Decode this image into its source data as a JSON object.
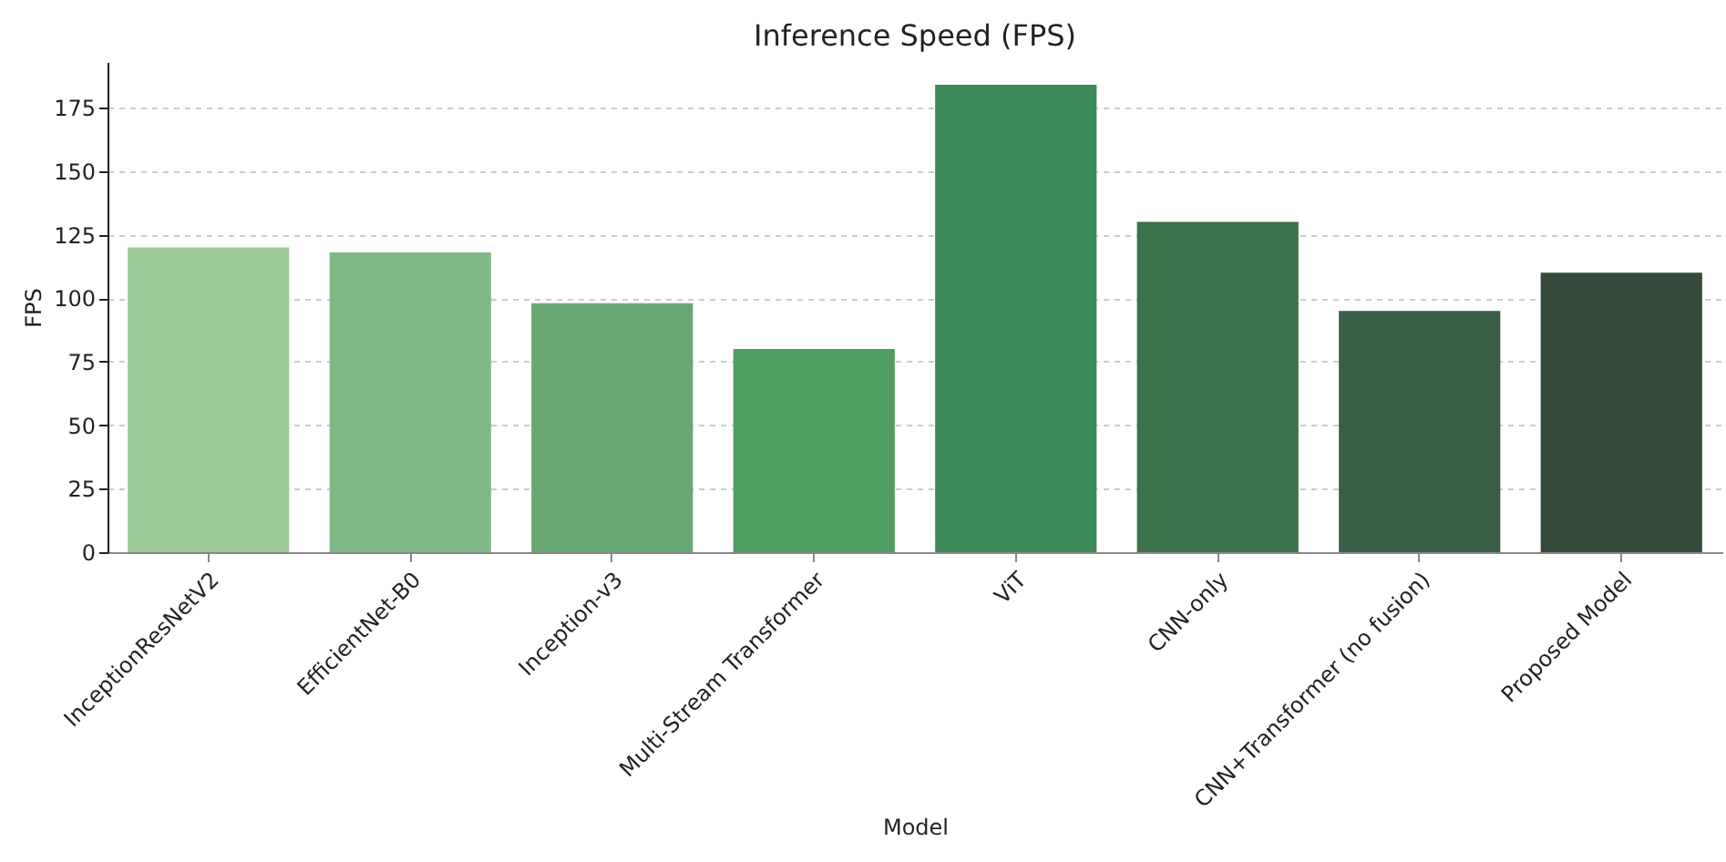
{
  "chart_data": {
    "type": "bar",
    "title": "Inference Speed (FPS)",
    "xlabel": "Model",
    "ylabel": "FPS",
    "categories": [
      "InceptionResNetV2",
      "EfficientNet-B0",
      "Inception-v3",
      "Multi-Stream Transformer",
      "ViT",
      "CNN-only",
      "CNN+Transformer (no fusion)",
      "Proposed Model"
    ],
    "values": [
      120,
      118,
      98,
      80,
      184,
      130,
      95,
      110
    ],
    "colors": [
      "#9ccb98",
      "#80b985",
      "#69a872",
      "#519e63",
      "#3e8a56",
      "#3d734b",
      "#385f43",
      "#344a3b"
    ],
    "ylim": [
      0,
      193
    ],
    "yticks": [
      0,
      25,
      50,
      75,
      100,
      125,
      150,
      175
    ],
    "grid": "y"
  }
}
